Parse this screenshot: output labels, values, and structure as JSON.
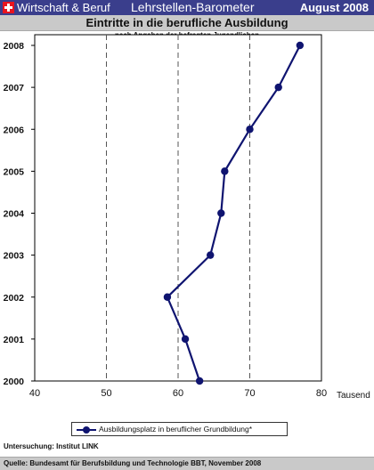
{
  "header": {
    "brand": "Wirtschaft & Beruf",
    "title": "Lehrstellen-Barometer",
    "date": "August 2008"
  },
  "chart_data": {
    "type": "line",
    "title": "Eintritte in die berufliche Ausbildung",
    "subtitle": "nach Angaben der befragten Jugendlichen",
    "xlabel": "Tausend",
    "ylabel": "",
    "xlim": [
      40,
      80
    ],
    "x_ticks": [
      "40",
      "50",
      "60",
      "70",
      "80"
    ],
    "categories": [
      "2000",
      "2001",
      "2002",
      "2003",
      "2004",
      "2005",
      "2006",
      "2007",
      "2008"
    ],
    "grid": "vertical dashed",
    "legend_position": "bottom",
    "series": [
      {
        "name": "Ausbildungsplatz in beruflicher Grundbildung*",
        "color": "#0f1470",
        "values": [
          63,
          61,
          58.5,
          64.5,
          66,
          66.5,
          70,
          74,
          77
        ]
      }
    ]
  },
  "footer": {
    "study": "Untersuchung: Institut LINK",
    "source": "Quelle: Bundesamt für Berufsbildung und Technologie BBT, November 2008"
  }
}
